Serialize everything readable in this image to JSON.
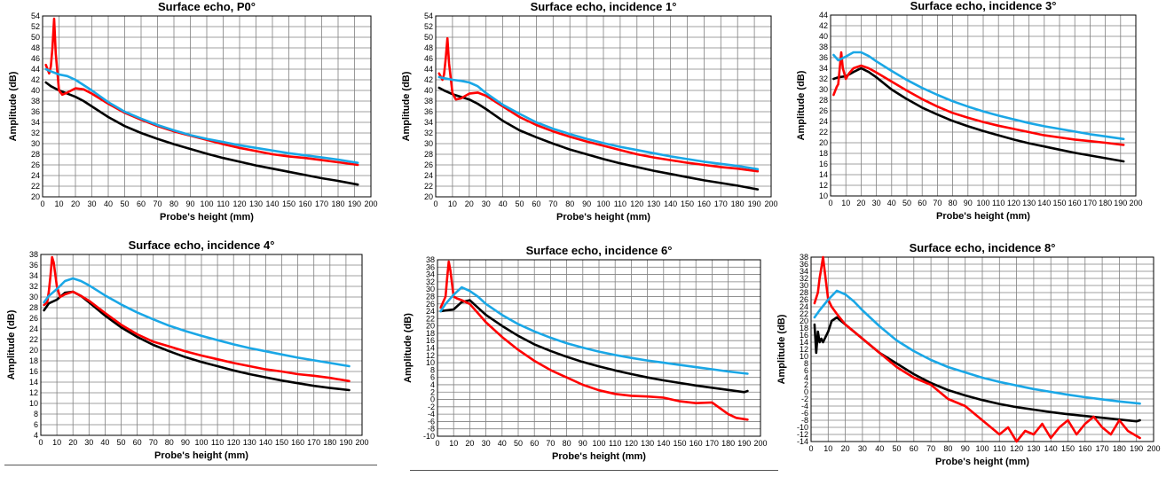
{
  "colors": {
    "black_series": "#000000",
    "red_series": "#ff0000",
    "blue_series": "#1aa7e6",
    "grid": "#808080",
    "plot_bg": "#ffffff"
  },
  "chart_data": [
    {
      "type": "line",
      "title": "Surface echo, P0°",
      "xlabel": "Probe's height (mm)",
      "ylabel": "Amplitude (dB)",
      "xlim": [
        0,
        200
      ],
      "xstep": 10,
      "ylim": [
        20,
        54
      ],
      "ystep": 2,
      "series": [
        {
          "name": "black",
          "x": [
            2,
            5,
            10,
            15,
            20,
            25,
            30,
            40,
            50,
            60,
            70,
            80,
            90,
            100,
            110,
            120,
            130,
            140,
            150,
            160,
            170,
            180,
            192
          ],
          "y": [
            41.5,
            40.8,
            40.0,
            39.4,
            38.8,
            38.0,
            37.0,
            35.0,
            33.3,
            32.0,
            30.9,
            29.9,
            29.0,
            28.1,
            27.3,
            26.6,
            25.9,
            25.3,
            24.7,
            24.1,
            23.5,
            23.0,
            22.3
          ]
        },
        {
          "name": "red",
          "x": [
            2,
            4,
            5,
            6,
            7,
            8,
            10,
            12,
            15,
            20,
            25,
            30,
            40,
            50,
            60,
            70,
            80,
            90,
            100,
            110,
            120,
            130,
            140,
            150,
            160,
            170,
            180,
            192
          ],
          "y": [
            44.8,
            43.2,
            44.5,
            48,
            53.5,
            47,
            40,
            39.2,
            39.6,
            40.4,
            40.2,
            39.4,
            37.5,
            35.8,
            34.5,
            33.3,
            32.3,
            31.5,
            30.7,
            29.9,
            29.2,
            28.6,
            28.0,
            27.6,
            27.3,
            26.9,
            26.5,
            26.0
          ]
        },
        {
          "name": "blue",
          "x": [
            2,
            5,
            10,
            15,
            20,
            25,
            30,
            40,
            50,
            60,
            70,
            80,
            90,
            100,
            110,
            120,
            130,
            140,
            150,
            160,
            170,
            180,
            192
          ],
          "y": [
            44.0,
            43.6,
            43.0,
            42.7,
            42.0,
            41.0,
            40.0,
            37.8,
            36.0,
            34.7,
            33.5,
            32.5,
            31.6,
            30.9,
            30.3,
            29.7,
            29.2,
            28.7,
            28.2,
            27.8,
            27.4,
            27.0,
            26.4
          ]
        }
      ]
    },
    {
      "type": "line",
      "title": "Surface echo, incidence 1°",
      "xlabel": "Probe's height (mm)",
      "ylabel": "Amplitude (dB)",
      "xlim": [
        0,
        200
      ],
      "xstep": 10,
      "ylim": [
        20,
        54
      ],
      "ystep": 2,
      "series": [
        {
          "name": "black",
          "x": [
            2,
            5,
            10,
            15,
            20,
            25,
            30,
            40,
            50,
            60,
            70,
            80,
            90,
            100,
            110,
            120,
            130,
            140,
            150,
            160,
            170,
            180,
            192
          ],
          "y": [
            40.5,
            40.0,
            39.3,
            38.8,
            38.3,
            37.5,
            36.5,
            34.3,
            32.5,
            31.2,
            30.0,
            28.9,
            28.0,
            27.1,
            26.3,
            25.6,
            24.9,
            24.3,
            23.7,
            23.1,
            22.6,
            22.1,
            21.4
          ]
        },
        {
          "name": "red",
          "x": [
            2,
            4,
            5,
            6,
            7,
            8,
            10,
            12,
            15,
            20,
            25,
            30,
            40,
            50,
            60,
            70,
            80,
            90,
            100,
            110,
            120,
            130,
            140,
            150,
            160,
            170,
            180,
            192
          ],
          "y": [
            43.2,
            42.0,
            43.0,
            46,
            49.8,
            45,
            39.5,
            38.3,
            38.5,
            39.4,
            39.6,
            39.0,
            37.0,
            35.0,
            33.5,
            32.3,
            31.3,
            30.4,
            29.6,
            28.8,
            28.0,
            27.4,
            26.9,
            26.4,
            26.0,
            25.6,
            25.3,
            24.8
          ]
        },
        {
          "name": "blue",
          "x": [
            2,
            5,
            10,
            15,
            20,
            25,
            30,
            40,
            50,
            60,
            70,
            80,
            90,
            100,
            110,
            120,
            130,
            140,
            150,
            160,
            170,
            180,
            192
          ],
          "y": [
            42.5,
            42.3,
            42.0,
            41.8,
            41.5,
            40.8,
            39.5,
            37.3,
            35.6,
            34.0,
            32.8,
            31.8,
            30.9,
            30.1,
            29.4,
            28.8,
            28.2,
            27.6,
            27.1,
            26.6,
            26.2,
            25.8,
            25.2
          ]
        }
      ]
    },
    {
      "type": "line",
      "title": "Surface echo, incidence 3°",
      "xlabel": "Probe's height (mm)",
      "ylabel": "Amplitude (dB)",
      "xlim": [
        0,
        200
      ],
      "xstep": 10,
      "ylim": [
        10,
        44
      ],
      "ystep": 2,
      "series": [
        {
          "name": "black",
          "x": [
            2,
            5,
            10,
            15,
            20,
            25,
            30,
            40,
            50,
            60,
            70,
            80,
            90,
            100,
            110,
            120,
            130,
            140,
            150,
            160,
            170,
            180,
            192
          ],
          "y": [
            32.0,
            32.3,
            32.5,
            33.3,
            34.0,
            33.3,
            32.3,
            30.0,
            28.2,
            26.6,
            25.3,
            24.1,
            23.1,
            22.2,
            21.4,
            20.6,
            19.9,
            19.3,
            18.7,
            18.1,
            17.6,
            17.1,
            16.5
          ]
        },
        {
          "name": "red",
          "x": [
            2,
            4,
            5,
            6,
            7,
            8,
            10,
            12,
            15,
            20,
            25,
            30,
            40,
            50,
            60,
            70,
            80,
            90,
            100,
            110,
            120,
            130,
            140,
            150,
            160,
            170,
            180,
            192
          ],
          "y": [
            29.0,
            30.5,
            31.0,
            34,
            37.0,
            34,
            32.0,
            33.0,
            34.0,
            34.5,
            34.0,
            33.2,
            31.5,
            29.8,
            28.2,
            26.8,
            25.6,
            24.7,
            23.9,
            23.2,
            22.6,
            22.0,
            21.4,
            21.0,
            20.6,
            20.3,
            20.0,
            19.6
          ]
        },
        {
          "name": "blue",
          "x": [
            2,
            5,
            10,
            15,
            20,
            25,
            30,
            40,
            50,
            60,
            70,
            80,
            90,
            100,
            110,
            120,
            130,
            140,
            150,
            160,
            170,
            180,
            192
          ],
          "y": [
            36.5,
            35.5,
            36.2,
            37.0,
            37.0,
            36.3,
            35.3,
            33.5,
            31.8,
            30.3,
            29.0,
            27.8,
            26.8,
            25.9,
            25.1,
            24.4,
            23.7,
            23.1,
            22.6,
            22.1,
            21.6,
            21.2,
            20.7
          ]
        }
      ]
    },
    {
      "type": "line",
      "title": "Surface echo, incidence 4°",
      "xlabel": "Probe's height (mm)",
      "ylabel": "Amplitude (dB)",
      "xlim": [
        0,
        200
      ],
      "xstep": 10,
      "ylim": [
        4,
        38
      ],
      "ystep": 2,
      "series": [
        {
          "name": "black",
          "x": [
            2,
            5,
            10,
            15,
            20,
            25,
            30,
            40,
            50,
            60,
            70,
            80,
            90,
            100,
            110,
            120,
            130,
            140,
            150,
            160,
            170,
            180,
            192
          ],
          "y": [
            27.5,
            28.8,
            29.5,
            30.8,
            31.0,
            30.2,
            29.0,
            26.5,
            24.3,
            22.5,
            21.0,
            19.8,
            18.7,
            17.8,
            17.0,
            16.2,
            15.5,
            14.9,
            14.3,
            13.8,
            13.3,
            12.9,
            12.5
          ]
        },
        {
          "name": "red",
          "x": [
            2,
            4,
            5,
            6,
            7,
            8,
            10,
            12,
            15,
            20,
            25,
            30,
            40,
            50,
            60,
            70,
            80,
            90,
            100,
            110,
            120,
            130,
            140,
            150,
            160,
            170,
            180,
            192
          ],
          "y": [
            28.5,
            29.0,
            31.0,
            34,
            37.5,
            36.5,
            32.0,
            30.0,
            30.5,
            31.0,
            30.2,
            29.3,
            27.0,
            24.8,
            23.0,
            21.6,
            20.7,
            19.8,
            19.0,
            18.3,
            17.6,
            17.0,
            16.4,
            16.0,
            15.5,
            15.2,
            14.8,
            14.2
          ]
        },
        {
          "name": "blue",
          "x": [
            2,
            5,
            10,
            15,
            20,
            25,
            30,
            40,
            50,
            60,
            70,
            80,
            90,
            100,
            110,
            120,
            130,
            140,
            150,
            160,
            170,
            180,
            192
          ],
          "y": [
            29.0,
            30.2,
            31.5,
            33.0,
            33.5,
            33.0,
            32.2,
            30.3,
            28.6,
            27.1,
            25.8,
            24.6,
            23.6,
            22.7,
            21.9,
            21.1,
            20.4,
            19.8,
            19.2,
            18.6,
            18.1,
            17.6,
            17.0
          ]
        }
      ]
    },
    {
      "type": "line",
      "title": "Surface echo, incidence 6°",
      "xlabel": "Probe's height (mm)",
      "ylabel": "Amplitude (dB)",
      "xlim": [
        0,
        200
      ],
      "xstep": 10,
      "ylim": [
        -10,
        38
      ],
      "ystep": 2,
      "series": [
        {
          "name": "black",
          "x": [
            2,
            5,
            10,
            15,
            20,
            25,
            30,
            40,
            50,
            60,
            70,
            80,
            90,
            100,
            110,
            120,
            130,
            140,
            150,
            160,
            170,
            180,
            190,
            192
          ],
          "y": [
            24.0,
            24.2,
            24.5,
            26.5,
            27.0,
            25.0,
            23.0,
            20.0,
            17.3,
            15.0,
            13.2,
            11.6,
            10.2,
            9.0,
            7.9,
            6.9,
            6.0,
            5.2,
            4.5,
            3.8,
            3.2,
            2.6,
            2.0,
            2.3
          ]
        },
        {
          "name": "red",
          "x": [
            2,
            4,
            5,
            6,
            7,
            8,
            10,
            12,
            15,
            20,
            25,
            30,
            40,
            50,
            60,
            70,
            80,
            90,
            100,
            110,
            120,
            130,
            140,
            150,
            160,
            170,
            180,
            185,
            192
          ],
          "y": [
            25.0,
            27.0,
            28.0,
            33,
            37.5,
            35.0,
            28.0,
            27.5,
            27.0,
            26.0,
            23.5,
            21.0,
            17.0,
            13.5,
            10.5,
            8.0,
            6.0,
            4.0,
            2.5,
            1.5,
            1.0,
            0.8,
            0.5,
            -0.5,
            -1.0,
            -0.8,
            -4.0,
            -5.0,
            -5.5
          ]
        },
        {
          "name": "blue",
          "x": [
            2,
            5,
            10,
            15,
            20,
            25,
            30,
            40,
            50,
            60,
            70,
            80,
            90,
            100,
            110,
            120,
            130,
            140,
            150,
            160,
            170,
            180,
            192
          ],
          "y": [
            24.0,
            26.0,
            28.5,
            30.5,
            29.5,
            28.0,
            26.0,
            23.0,
            20.5,
            18.5,
            16.8,
            15.3,
            14.1,
            13.0,
            12.1,
            11.3,
            10.6,
            10.0,
            9.4,
            8.8,
            8.2,
            7.6,
            7.0
          ]
        }
      ]
    },
    {
      "type": "line",
      "title": "Surface echo, incidence 8°",
      "xlabel": "Probe's height (mm)",
      "ylabel": "Amplitude (dB)",
      "xlim": [
        0,
        200
      ],
      "xstep": 10,
      "ylim": [
        -14,
        38
      ],
      "ystep": 2,
      "series": [
        {
          "name": "black",
          "x": [
            2,
            3,
            4,
            5,
            6,
            7,
            8,
            10,
            12,
            15,
            20,
            25,
            30,
            40,
            50,
            60,
            70,
            80,
            90,
            100,
            110,
            120,
            130,
            140,
            150,
            160,
            170,
            180,
            190,
            192
          ],
          "y": [
            19,
            11,
            17,
            14,
            15,
            14,
            15,
            17,
            20,
            21,
            19,
            17,
            15,
            11,
            8,
            5,
            2.5,
            0.5,
            -1.0,
            -2.3,
            -3.4,
            -4.3,
            -5.0,
            -5.7,
            -6.3,
            -6.8,
            -7.3,
            -7.8,
            -8.3,
            -8.0
          ]
        },
        {
          "name": "red",
          "x": [
            2,
            4,
            5,
            6,
            7,
            8,
            10,
            12,
            15,
            20,
            25,
            30,
            40,
            50,
            60,
            70,
            80,
            90,
            100,
            105,
            110,
            115,
            120,
            125,
            130,
            135,
            140,
            145,
            150,
            155,
            160,
            165,
            170,
            175,
            180,
            185,
            192
          ],
          "y": [
            25,
            28,
            32,
            35,
            38,
            34,
            26,
            24,
            22,
            19,
            17,
            15,
            11,
            7,
            4,
            2,
            -2,
            -4,
            -8,
            -10,
            -12,
            -10,
            -14,
            -11,
            -12,
            -9,
            -13,
            -10,
            -8,
            -12,
            -9,
            -7,
            -10,
            -12,
            -8,
            -11,
            -13
          ]
        },
        {
          "name": "blue",
          "x": [
            2,
            5,
            10,
            15,
            20,
            25,
            30,
            40,
            50,
            60,
            70,
            80,
            90,
            100,
            110,
            120,
            130,
            140,
            150,
            160,
            170,
            180,
            192
          ],
          "y": [
            21.0,
            23.0,
            26.0,
            28.5,
            27.5,
            25.5,
            23.0,
            18.5,
            14.5,
            11.5,
            9.0,
            7.0,
            5.5,
            4.0,
            2.8,
            1.8,
            0.8,
            0.0,
            -0.8,
            -1.5,
            -2.1,
            -2.7,
            -3.3
          ]
        }
      ]
    }
  ]
}
